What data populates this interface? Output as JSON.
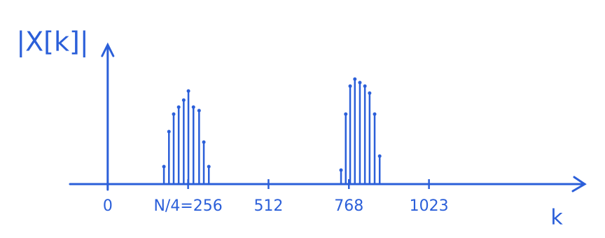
{
  "chart_data": {
    "type": "stem",
    "y_label": "|X[k]|",
    "x_label": "k",
    "color": "#2b5fd9",
    "x": [
      179,
      195,
      210,
      226,
      242,
      257,
      273,
      291,
      306,
      322,
      743,
      758,
      772,
      787,
      803,
      819,
      834,
      850,
      866
    ],
    "values": [
      25,
      75,
      100,
      110,
      120,
      133,
      110,
      105,
      60,
      25,
      20,
      100,
      140,
      150,
      145,
      140,
      130,
      100,
      40
    ],
    "xlim": [
      -120,
      1530
    ],
    "ylim": [
      0,
      200
    ],
    "xticks": [
      0,
      {
        "value": 256,
        "label": "N/4=256"
      },
      512,
      768,
      1023
    ]
  }
}
